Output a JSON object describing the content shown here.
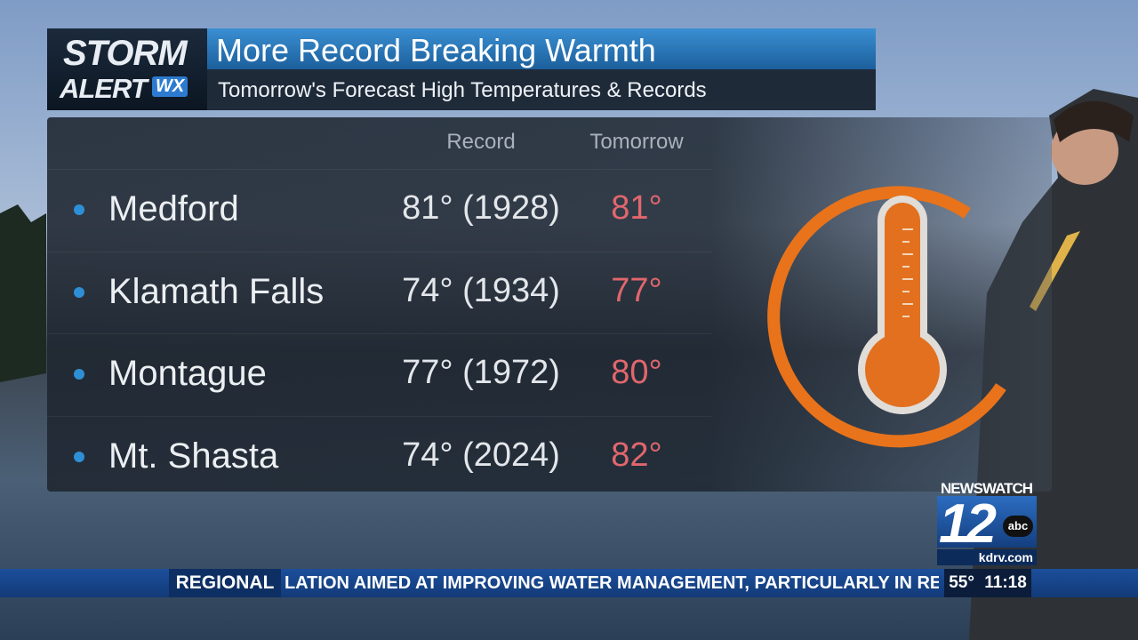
{
  "logo": {
    "line1": "STORM",
    "line2": "ALERT",
    "badge": "WX"
  },
  "header": {
    "title": "More Record Breaking Warmth",
    "subtitle": "Tomorrow's Forecast High Temperatures & Records"
  },
  "table": {
    "columns": [
      "Record",
      "Tomorrow"
    ],
    "rows": [
      [
        "Medford",
        "81° (1928)",
        "81°"
      ],
      [
        "Klamath Falls",
        "74° (1934)",
        "77°"
      ],
      [
        "Montague",
        "77° (1972)",
        "80°"
      ],
      [
        "Mt. Shasta",
        "74° (2024)",
        "82°"
      ]
    ]
  },
  "station": {
    "name": "NEWSWATCH",
    "channel": "12",
    "network": "abc",
    "site": "kdrv.com"
  },
  "ticker": {
    "section": "REGIONAL",
    "text": "LATION AIMED AT IMPROVING WATER MANAGEMENT, PARTICULARLY IN REG",
    "temperature": "55°",
    "time": "11:18"
  }
}
